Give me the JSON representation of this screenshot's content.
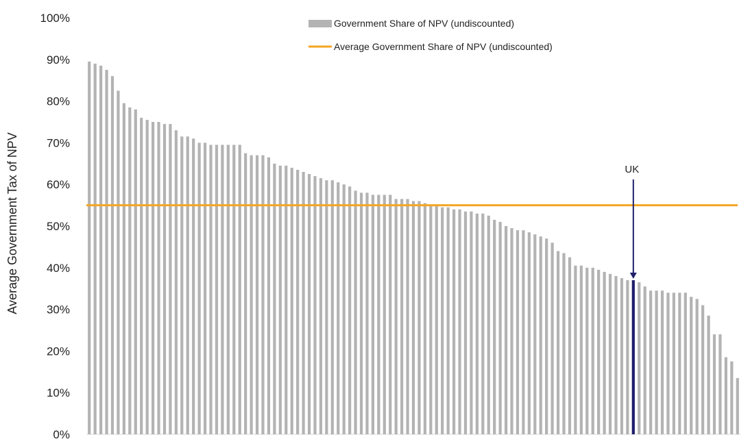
{
  "chart_data": {
    "type": "bar",
    "ylabel": "Average Government Tax of NPV",
    "ylim": [
      0,
      100
    ],
    "yticks": [
      "0%",
      "10%",
      "20%",
      "30%",
      "40%",
      "50%",
      "60%",
      "70%",
      "80%",
      "90%",
      "100%"
    ],
    "series": [
      {
        "name": "Government Share of NPV (undiscounted)",
        "color": "#b3b3b3",
        "values": [
          89.5,
          89,
          88.5,
          87.5,
          86,
          82.5,
          79.5,
          78.5,
          78,
          76,
          75.5,
          75,
          75,
          74.5,
          74.5,
          73,
          71.5,
          71.5,
          71,
          70,
          70,
          69.5,
          69.5,
          69.5,
          69.5,
          69.5,
          69.5,
          67.5,
          67,
          67,
          67,
          66.5,
          65,
          64.5,
          64.5,
          64,
          63.5,
          63,
          62.5,
          62,
          61.5,
          61,
          61,
          60.5,
          60,
          59.5,
          58.5,
          58,
          58,
          57.5,
          57.5,
          57.5,
          57.5,
          56.5,
          56.5,
          56.5,
          56,
          56,
          55.5,
          55,
          55,
          54.5,
          54.5,
          54,
          54,
          53.5,
          53.5,
          53,
          53,
          52.5,
          51.5,
          51,
          50,
          49.5,
          49,
          49,
          48.5,
          48,
          47.5,
          47,
          46,
          44,
          43.5,
          42.5,
          40.5,
          40.5,
          40,
          40,
          39.5,
          39,
          38.5,
          38,
          37.5,
          37,
          37,
          36.5,
          35.5,
          34.5,
          34.5,
          34.5,
          34,
          34,
          34,
          34,
          33,
          32.5,
          31,
          28.5,
          24,
          24,
          18.5,
          17.5,
          13.5
        ]
      }
    ],
    "average": {
      "name": "Average Government Share of NPV (undiscounted)",
      "value": 55,
      "color": "#f5a623"
    },
    "highlight": {
      "label": "UK",
      "index": 94,
      "color": "#1f1f6b"
    },
    "legend_position": "top-right",
    "grid": false
  }
}
